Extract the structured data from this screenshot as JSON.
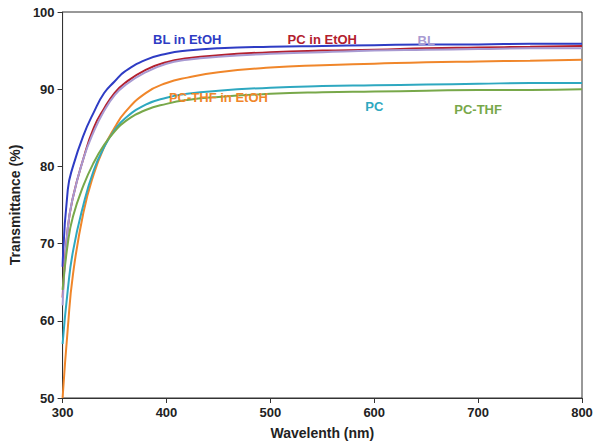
{
  "chart_data": {
    "type": "line",
    "x_label": "Wavelenth (nm)",
    "y_label": "Transmittance (%)",
    "x": [
      300,
      305,
      310,
      320,
      330,
      340,
      350,
      360,
      380,
      400,
      420,
      450,
      500,
      550,
      600,
      650,
      700,
      750,
      800
    ],
    "series": [
      {
        "name": "BL in EtOH",
        "color": "#2e3cc4",
        "values": [
          67,
          77,
          80,
          84,
          87,
          89.5,
          91,
          92.3,
          93.8,
          94.6,
          95,
          95.3,
          95.5,
          95.6,
          95.7,
          95.8,
          95.8,
          95.9,
          95.9
        ]
      },
      {
        "name": "PC in EtOH",
        "color": "#b3202e",
        "values": [
          63,
          72,
          76,
          81,
          85,
          87.5,
          89.5,
          90.8,
          92.5,
          93.5,
          94,
          94.4,
          94.8,
          95,
          95.1,
          95.3,
          95.4,
          95.5,
          95.6
        ]
      },
      {
        "name": "BL",
        "color": "#a89ad2",
        "values": [
          62,
          72,
          76,
          81,
          84.5,
          87.2,
          89.2,
          90.5,
          92.2,
          93.3,
          93.8,
          94.2,
          94.6,
          94.8,
          95,
          95.1,
          95.2,
          95.3,
          95.3
        ]
      },
      {
        "name": "PC-THF in EtOH",
        "color": "#f0862a",
        "values": [
          50,
          59,
          66,
          74,
          79,
          82.5,
          85,
          87,
          89.5,
          90.8,
          91.5,
          92.2,
          92.8,
          93.1,
          93.3,
          93.5,
          93.6,
          93.7,
          93.8
        ]
      },
      {
        "name": "PC",
        "color": "#2ea8c0",
        "values": [
          57,
          64,
          69,
          75,
          79.5,
          82.5,
          84.7,
          86.2,
          88,
          88.9,
          89.4,
          89.8,
          90.2,
          90.4,
          90.5,
          90.6,
          90.7,
          90.8,
          90.8
        ]
      },
      {
        "name": "PC-THF",
        "color": "#78a84a",
        "values": [
          64,
          70,
          73.5,
          77.5,
          80.5,
          82.8,
          84.5,
          85.8,
          87.3,
          88.1,
          88.6,
          89,
          89.4,
          89.6,
          89.7,
          89.8,
          89.9,
          89.9,
          90
        ]
      }
    ],
    "xlim": [
      300,
      800
    ],
    "xticks": [
      300,
      400,
      500,
      600,
      700,
      800
    ],
    "ylim": [
      50,
      100
    ],
    "yticks": [
      50,
      60,
      70,
      80,
      90,
      100
    ],
    "grid": false
  }
}
